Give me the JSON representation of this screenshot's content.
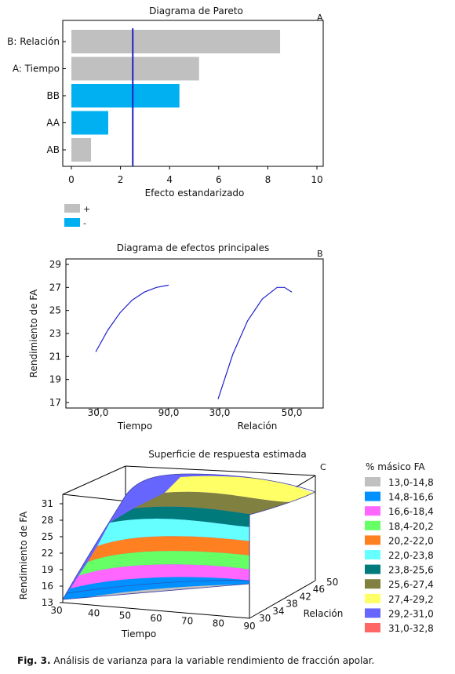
{
  "chart_data": [
    {
      "panel": "A",
      "type": "bar",
      "orientation": "horizontal",
      "title": "Diagrama de Pareto",
      "xlabel": "Efecto estandarizado",
      "xlim": [
        0,
        10
      ],
      "xticks": [
        "0",
        "2",
        "4",
        "6",
        "8",
        "10"
      ],
      "categories": [
        "B: Relación",
        "A: Tiempo",
        "BB",
        "AA",
        "AB"
      ],
      "values": [
        8.5,
        5.2,
        4.4,
        1.5,
        0.8
      ],
      "signs": [
        "+",
        "+",
        "-",
        "-",
        "+"
      ],
      "threshold": 2.5,
      "legend": [
        {
          "label": "+",
          "color": "#c0c0c0"
        },
        {
          "label": "-",
          "color": "#00b0f0"
        }
      ],
      "colors": {
        "positive": "#c0c0c0",
        "negative": "#00b0f0",
        "threshold": "#2020c0"
      }
    },
    {
      "panel": "B",
      "type": "line",
      "title": "Diagrama de efectos principales",
      "ylabel": "Rendimiento de FA",
      "ylim": [
        17,
        29
      ],
      "yticks": [
        "29",
        "27",
        "25",
        "23",
        "21",
        "19",
        "17"
      ],
      "factors": [
        {
          "name": "Tiempo",
          "low_label": "30,0",
          "high_label": "90,0",
          "x": [
            30,
            40,
            50,
            60,
            70,
            80,
            90
          ],
          "y": [
            21.4,
            23.3,
            24.8,
            25.9,
            26.6,
            27.0,
            27.2
          ]
        },
        {
          "name": "Relación",
          "low_label": "30,0",
          "high_label": "50,0",
          "x": [
            30,
            34,
            38,
            42,
            46,
            48,
            50
          ],
          "y": [
            17.3,
            21.2,
            24.1,
            26.0,
            27.0,
            27.0,
            26.6
          ]
        }
      ],
      "color": "#2020d0"
    },
    {
      "panel": "C",
      "type": "surface",
      "title": "Superficie de respuesta estimada",
      "zlabel": "Rendimiento de FA",
      "xlabel": "Tiempo",
      "ylabel": "Relación",
      "xticks": [
        "30",
        "40",
        "50",
        "60",
        "70",
        "80",
        "90"
      ],
      "yticks": [
        "30",
        "34",
        "38",
        "42",
        "46",
        "50"
      ],
      "zticks": [
        "31",
        "28",
        "25",
        "22",
        "19",
        "16",
        "13"
      ],
      "legend_title": "% másico FA",
      "legend": [
        {
          "label": "13,0-14,8",
          "color": "#c0c0c0"
        },
        {
          "label": "14,8-16,6",
          "color": "#0090ff"
        },
        {
          "label": "16,6-18,4",
          "color": "#ff66ff"
        },
        {
          "label": "18,4-20,2",
          "color": "#66ff66"
        },
        {
          "label": "20,2-22,0",
          "color": "#ff8020"
        },
        {
          "label": "22,0-23,8",
          "color": "#66ffff"
        },
        {
          "label": "23,8-25,6",
          "color": "#007a7a"
        },
        {
          "label": "25,6-27,4",
          "color": "#808040"
        },
        {
          "label": "27,4-29,2",
          "color": "#ffff66"
        },
        {
          "label": "29,2-31,0",
          "color": "#6666ff"
        },
        {
          "label": "31,0-32,8",
          "color": "#ff6666"
        }
      ]
    }
  ],
  "caption": {
    "label": "Fig. 3.",
    "text": " Análisis de varianza para la variable rendimiento de fracción apolar."
  }
}
